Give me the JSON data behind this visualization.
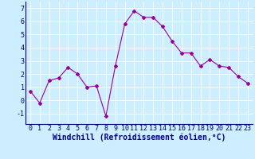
{
  "x": [
    0,
    1,
    2,
    3,
    4,
    5,
    6,
    7,
    8,
    9,
    10,
    11,
    12,
    13,
    14,
    15,
    16,
    17,
    18,
    19,
    20,
    21,
    22,
    23
  ],
  "y": [
    0.7,
    -0.2,
    1.5,
    1.7,
    2.5,
    2.0,
    1.0,
    1.1,
    -1.2,
    2.6,
    5.8,
    6.8,
    6.3,
    6.3,
    5.6,
    4.5,
    3.6,
    3.6,
    2.6,
    3.1,
    2.6,
    2.5,
    1.8,
    1.3
  ],
  "line_color": "#990099",
  "marker": "D",
  "marker_size": 2,
  "bg_color": "#cceeff",
  "grid_color": "#ffffff",
  "xlabel": "Windchill (Refroidissement éolien,°C)",
  "xlabel_fontsize": 7,
  "tick_fontsize": 6,
  "ylim": [
    -1.8,
    7.5
  ],
  "xlim": [
    -0.5,
    23.5
  ],
  "yticks": [
    -1,
    0,
    1,
    2,
    3,
    4,
    5,
    6,
    7
  ],
  "xticks": [
    0,
    1,
    2,
    3,
    4,
    5,
    6,
    7,
    8,
    9,
    10,
    11,
    12,
    13,
    14,
    15,
    16,
    17,
    18,
    19,
    20,
    21,
    22,
    23
  ],
  "tick_color": "#000080",
  "label_color": "#000080",
  "spine_color": "#000080"
}
